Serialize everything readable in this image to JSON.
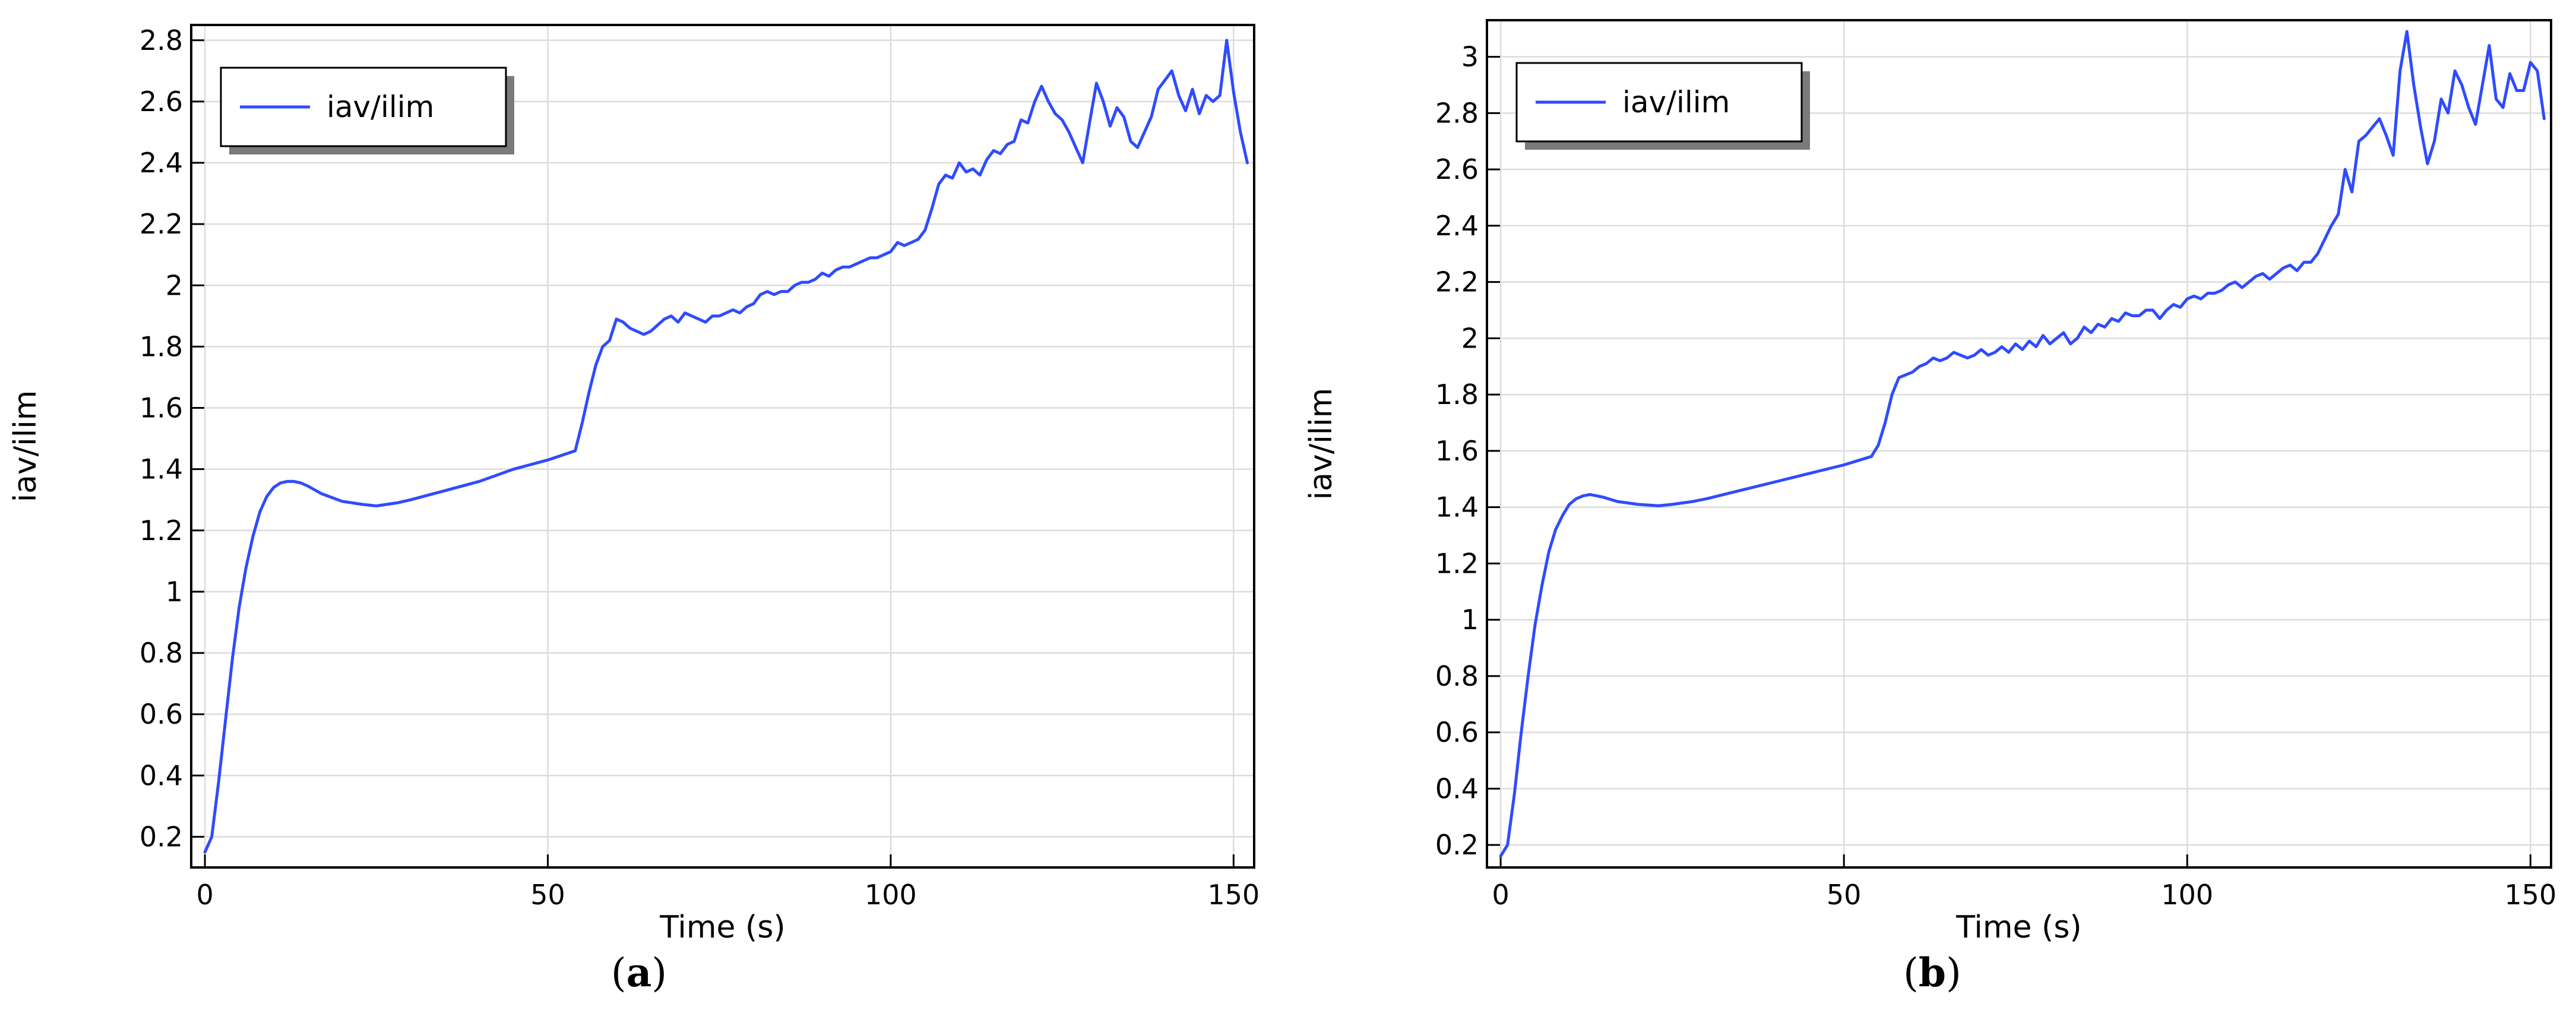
{
  "chart_data": [
    {
      "panel_label_prefix": "(",
      "panel_letter": "a",
      "panel_label_suffix": ")",
      "type": "line",
      "xlabel": "Time (s)",
      "ylabel": "iav/ilim",
      "xlim": [
        -2,
        153
      ],
      "ylim": [
        0.1,
        2.85
      ],
      "xticks": [
        0,
        50,
        100,
        150
      ],
      "yticks": [
        0.2,
        0.4,
        0.6,
        0.8,
        1,
        1.2,
        1.4,
        1.6,
        1.8,
        2,
        2.2,
        2.4,
        2.6,
        2.8
      ],
      "grid": true,
      "legend_position": "top-left",
      "line_color": "#2f4bff",
      "series": [
        {
          "name": "iav/ilim",
          "x": [
            0,
            1,
            2,
            3,
            4,
            5,
            6,
            7,
            8,
            9,
            10,
            11,
            12,
            13,
            14,
            15,
            17,
            20,
            23,
            25,
            28,
            30,
            35,
            40,
            45,
            50,
            54,
            55,
            56,
            57,
            58,
            59,
            60,
            61,
            62,
            63,
            64,
            65,
            66,
            67,
            68,
            69,
            70,
            71,
            72,
            73,
            74,
            75,
            76,
            77,
            78,
            79,
            80,
            81,
            82,
            83,
            84,
            85,
            86,
            87,
            88,
            89,
            90,
            91,
            92,
            93,
            94,
            95,
            96,
            97,
            98,
            99,
            100,
            101,
            102,
            103,
            104,
            105,
            106,
            107,
            108,
            109,
            110,
            111,
            112,
            113,
            114,
            115,
            116,
            117,
            118,
            119,
            120,
            121,
            122,
            123,
            124,
            125,
            126,
            127,
            128,
            129,
            130,
            131,
            132,
            133,
            134,
            135,
            136,
            137,
            138,
            139,
            140,
            141,
            142,
            143,
            144,
            145,
            146,
            147,
            148,
            149,
            150,
            151,
            152
          ],
          "y": [
            0.15,
            0.2,
            0.38,
            0.58,
            0.78,
            0.95,
            1.08,
            1.18,
            1.26,
            1.31,
            1.34,
            1.355,
            1.36,
            1.36,
            1.355,
            1.345,
            1.32,
            1.295,
            1.285,
            1.28,
            1.29,
            1.3,
            1.33,
            1.36,
            1.4,
            1.43,
            1.46,
            1.55,
            1.65,
            1.74,
            1.8,
            1.82,
            1.89,
            1.88,
            1.86,
            1.85,
            1.84,
            1.85,
            1.87,
            1.89,
            1.9,
            1.88,
            1.91,
            1.9,
            1.89,
            1.88,
            1.9,
            1.9,
            1.91,
            1.92,
            1.91,
            1.93,
            1.94,
            1.97,
            1.98,
            1.97,
            1.98,
            1.98,
            2.0,
            2.01,
            2.01,
            2.02,
            2.04,
            2.03,
            2.05,
            2.06,
            2.06,
            2.07,
            2.08,
            2.09,
            2.09,
            2.1,
            2.11,
            2.14,
            2.13,
            2.14,
            2.15,
            2.18,
            2.25,
            2.33,
            2.36,
            2.35,
            2.4,
            2.37,
            2.38,
            2.36,
            2.41,
            2.44,
            2.43,
            2.46,
            2.47,
            2.54,
            2.53,
            2.6,
            2.65,
            2.6,
            2.56,
            2.54,
            2.5,
            2.45,
            2.4,
            2.53,
            2.66,
            2.6,
            2.52,
            2.58,
            2.55,
            2.47,
            2.45,
            2.5,
            2.55,
            2.64,
            2.67,
            2.7,
            2.62,
            2.57,
            2.64,
            2.56,
            2.62,
            2.6,
            2.62,
            2.8,
            2.63,
            2.5,
            2.4
          ]
        }
      ]
    },
    {
      "panel_label_prefix": "(",
      "panel_letter": "b",
      "panel_label_suffix": ")",
      "type": "line",
      "xlabel": "Time (s)",
      "ylabel": "iav/ilim",
      "xlim": [
        -2,
        153
      ],
      "ylim": [
        0.12,
        3.13
      ],
      "xticks": [
        0,
        50,
        100,
        150
      ],
      "yticks": [
        0.2,
        0.4,
        0.6,
        0.8,
        1,
        1.2,
        1.4,
        1.6,
        1.8,
        2,
        2.2,
        2.4,
        2.6,
        2.8,
        3
      ],
      "grid": true,
      "legend_position": "top-left",
      "line_color": "#2f4bff",
      "series": [
        {
          "name": "iav/ilim",
          "x": [
            0,
            1,
            2,
            3,
            4,
            5,
            6,
            7,
            8,
            9,
            10,
            11,
            12,
            13,
            14,
            15,
            17,
            20,
            23,
            25,
            28,
            30,
            35,
            40,
            45,
            50,
            54,
            55,
            56,
            57,
            58,
            59,
            60,
            61,
            62,
            63,
            64,
            65,
            66,
            67,
            68,
            69,
            70,
            71,
            72,
            73,
            74,
            75,
            76,
            77,
            78,
            79,
            80,
            81,
            82,
            83,
            84,
            85,
            86,
            87,
            88,
            89,
            90,
            91,
            92,
            93,
            94,
            95,
            96,
            97,
            98,
            99,
            100,
            101,
            102,
            103,
            104,
            105,
            106,
            107,
            108,
            109,
            110,
            111,
            112,
            113,
            114,
            115,
            116,
            117,
            118,
            119,
            120,
            121,
            122,
            123,
            124,
            125,
            126,
            127,
            128,
            129,
            130,
            131,
            132,
            133,
            134,
            135,
            136,
            137,
            138,
            139,
            140,
            141,
            142,
            143,
            144,
            145,
            146,
            147,
            148,
            149,
            150,
            151,
            152
          ],
          "y": [
            0.16,
            0.2,
            0.38,
            0.6,
            0.8,
            0.98,
            1.12,
            1.24,
            1.32,
            1.37,
            1.41,
            1.43,
            1.44,
            1.445,
            1.44,
            1.435,
            1.42,
            1.41,
            1.405,
            1.41,
            1.42,
            1.43,
            1.46,
            1.49,
            1.52,
            1.55,
            1.58,
            1.62,
            1.7,
            1.8,
            1.86,
            1.87,
            1.88,
            1.9,
            1.91,
            1.93,
            1.92,
            1.93,
            1.95,
            1.94,
            1.93,
            1.94,
            1.96,
            1.94,
            1.95,
            1.97,
            1.95,
            1.98,
            1.96,
            1.99,
            1.97,
            2.01,
            1.98,
            2.0,
            2.02,
            1.98,
            2.0,
            2.04,
            2.02,
            2.05,
            2.04,
            2.07,
            2.06,
            2.09,
            2.08,
            2.08,
            2.1,
            2.1,
            2.07,
            2.1,
            2.12,
            2.11,
            2.14,
            2.15,
            2.14,
            2.16,
            2.16,
            2.17,
            2.19,
            2.2,
            2.18,
            2.2,
            2.22,
            2.23,
            2.21,
            2.23,
            2.25,
            2.26,
            2.24,
            2.27,
            2.27,
            2.3,
            2.35,
            2.4,
            2.44,
            2.6,
            2.52,
            2.7,
            2.72,
            2.75,
            2.78,
            2.72,
            2.65,
            2.95,
            3.09,
            2.9,
            2.75,
            2.62,
            2.7,
            2.85,
            2.8,
            2.95,
            2.9,
            2.82,
            2.76,
            2.9,
            3.04,
            2.85,
            2.82,
            2.94,
            2.88,
            2.88,
            2.98,
            2.95,
            2.78
          ]
        }
      ]
    }
  ]
}
